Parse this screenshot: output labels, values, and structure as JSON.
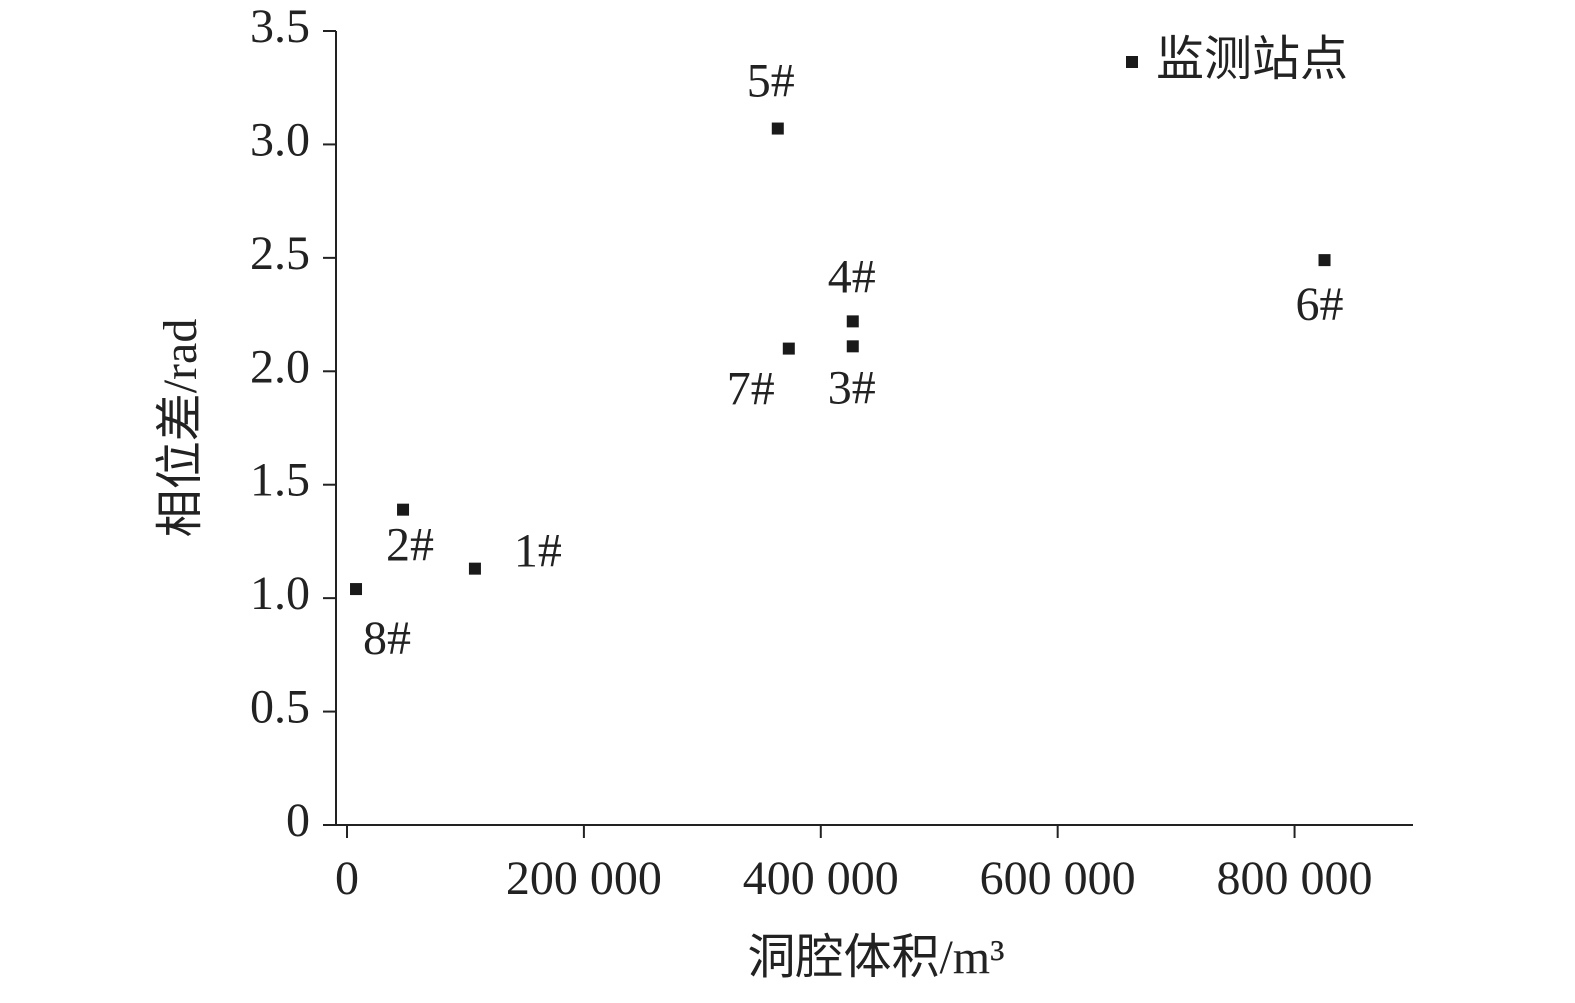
{
  "chart_data": {
    "type": "scatter",
    "x_label": "洞腔体积/m³",
    "y_label": "相位差/rad",
    "series": [
      {
        "name": "监测站点",
        "color": "#1a1a1a",
        "x": [
          108000,
          47300,
          427000,
          427000,
          363700,
          825300,
          373000,
          7600
        ],
        "values": [
          1.13,
          1.39,
          2.11,
          2.22,
          3.07,
          2.49,
          2.1,
          1.04
        ],
        "labels": [
          "1#",
          "2#",
          "3#",
          "4#",
          "5#",
          "6#",
          "7#",
          "8#"
        ]
      }
    ],
    "xlim": [
      -9300,
      900000
    ],
    "xticks": [
      0,
      {
        "value": 200000,
        "label": "200 000"
      },
      {
        "value": 400000,
        "label": "400 000"
      },
      {
        "value": 600000,
        "label": "600 000"
      },
      {
        "value": 800000,
        "label": "800 000"
      }
    ],
    "ylim": [
      0,
      3.5
    ],
    "yticks": [
      0,
      0.5,
      {
        "value": 1,
        "label": "1.0"
      },
      1.5,
      {
        "value": 2,
        "label": "2.0"
      },
      2.5,
      {
        "value": 3,
        "label": "3.0"
      },
      3.5
    ],
    "legend": "upper right"
  }
}
